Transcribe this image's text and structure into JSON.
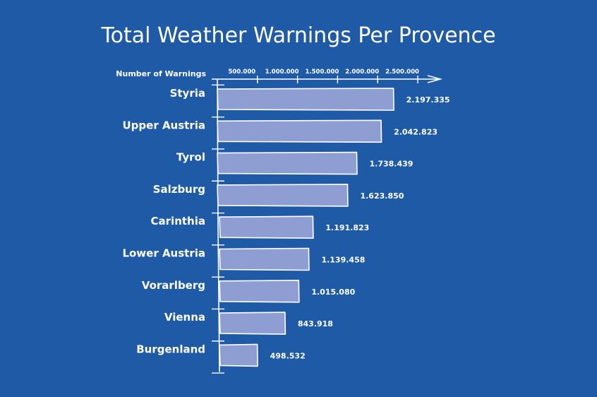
{
  "chart_data": {
    "type": "bar",
    "orientation": "horizontal",
    "title": "Total Weather Warnings Per Provence",
    "xlabel": "Number of Warnings",
    "ylabel": "",
    "categories": [
      "Styria",
      "Upper Austria",
      "Tyrol",
      "Salzburg",
      "Carinthia",
      "Lower Austria",
      "Vorarlberg",
      "Vienna",
      "Burgenland"
    ],
    "values": [
      2197335,
      2042823,
      1738439,
      1623850,
      1191823,
      1139458,
      1015080,
      843918,
      498532
    ],
    "value_labels": [
      "2.197.335",
      "2.042.823",
      "1.738.439",
      "1.623.850",
      "1.191.823",
      "1.139.458",
      "1.015.080",
      "843.918",
      "498.532"
    ],
    "xticks": [
      500000,
      1000000,
      1500000,
      2000000,
      2500000
    ],
    "xtick_labels": [
      "500.000",
      "1.000.000",
      "1.500.000",
      "2.000.000",
      "2.500.000"
    ],
    "xlim": [
      0,
      2750000
    ],
    "grid": false,
    "legend": "none",
    "colors": {
      "background": "#1f5aa6",
      "bar_fill": "#8f9ed2",
      "bar_stroke": "#ffffff",
      "text": "#ffffff"
    }
  }
}
